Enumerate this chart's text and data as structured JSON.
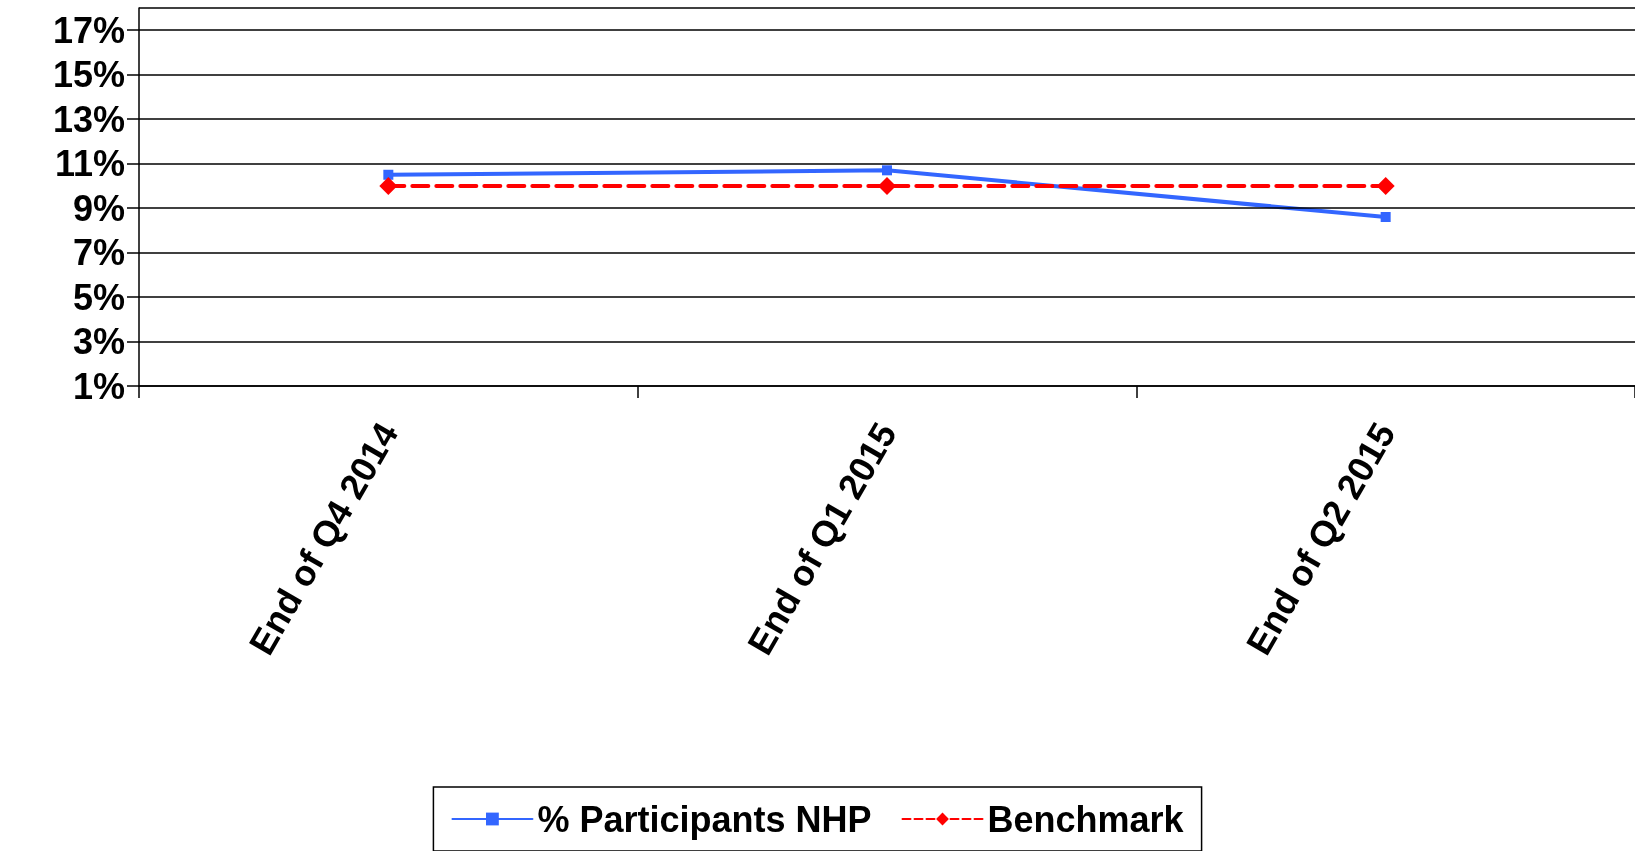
{
  "chart_data": {
    "type": "line",
    "categories": [
      "End of Q4 2014",
      "End of Q1 2015",
      "End of Q2 2015"
    ],
    "series": [
      {
        "name": "% Participants NHP",
        "color": "#3366ff",
        "values": [
          10.5,
          10.7,
          8.6
        ],
        "marker": "square",
        "line_style": "solid"
      },
      {
        "name": "Benchmark",
        "color": "#ff0000",
        "values": [
          10,
          10,
          10
        ],
        "marker": "diamond",
        "line_style": "dashed"
      }
    ],
    "ylim": [
      1,
      18
    ],
    "yticks": [
      {
        "value": 1,
        "label": "1%"
      },
      {
        "value": 3,
        "label": "3%"
      },
      {
        "value": 5,
        "label": "5%"
      },
      {
        "value": 7,
        "label": "7%"
      },
      {
        "value": 9,
        "label": "9%"
      },
      {
        "value": 11,
        "label": "11%"
      },
      {
        "value": 13,
        "label": "13%"
      },
      {
        "value": 15,
        "label": "15%"
      },
      {
        "value": 17,
        "label": "17%"
      }
    ],
    "grid": "y",
    "legend": "bottom"
  }
}
